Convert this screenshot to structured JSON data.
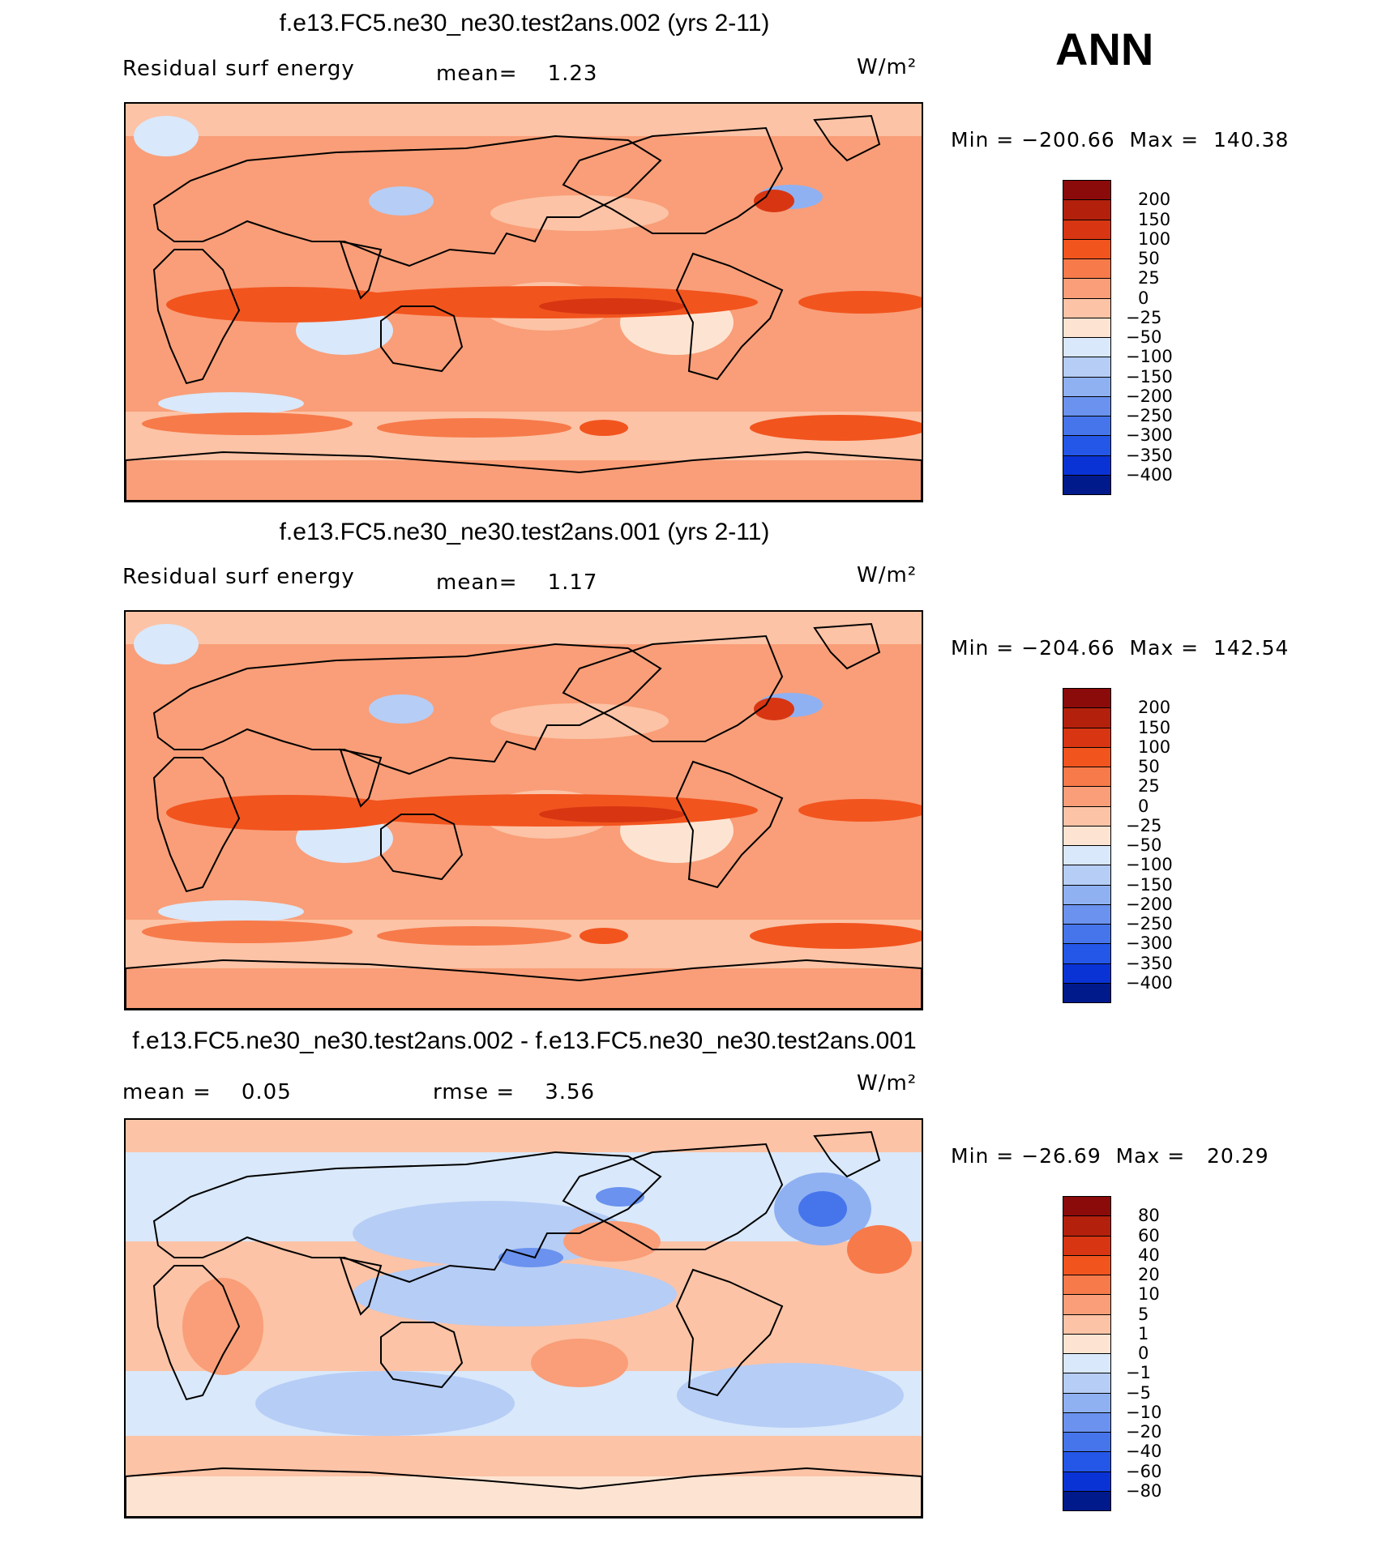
{
  "season": "ANN",
  "units": "W/m²",
  "panels": [
    {
      "id": "top",
      "title": "f.e13.FC5.ne30_ne30.test2ans.002 (yrs 2-11)",
      "left_label": "Residual surf energy",
      "center_label": "mean=    1.23",
      "units": "W/m²",
      "minmax": "Min = −200.66  Max =  140.38",
      "variant": "abs"
    },
    {
      "id": "middle",
      "title": "f.e13.FC5.ne30_ne30.test2ans.001 (yrs 2-11)",
      "left_label": "Residual surf energy",
      "center_label": "mean=    1.17",
      "units": "W/m²",
      "minmax": "Min = −204.66  Max =  142.54",
      "variant": "abs"
    },
    {
      "id": "bottom",
      "title": "f.e13.FC5.ne30_ne30.test2ans.002 - f.e13.FC5.ne30_ne30.test2ans.001",
      "left_label": "mean =    0.05",
      "center_label": "rmse =    3.56",
      "units": "W/m²",
      "minmax": "Min = −26.69  Max =   20.29",
      "variant": "diff"
    }
  ],
  "chart_data": [
    {
      "type": "heatmap",
      "title": "f.e13.FC5.ne30_ne30.test2ans.002 (yrs 2-11)",
      "variable": "Residual surf energy",
      "units": "W/m²",
      "mean": 1.23,
      "min": -200.66,
      "max": 140.38,
      "colorbar_levels": [
        "200",
        "150",
        "100",
        "50",
        "25",
        "0",
        "−25",
        "−50",
        "−100",
        "−150",
        "−200",
        "−250",
        "−300",
        "−350",
        "−400"
      ],
      "colorbar_colors": [
        "#8b0a0a",
        "#b3200c",
        "#d83612",
        "#f2541e",
        "#f77a4a",
        "#f99e78",
        "#fcc3a6",
        "#fde4d2",
        "#d9e8fa",
        "#b6cdf6",
        "#8fb1f2",
        "#6a92ee",
        "#4675eb",
        "#2456e8",
        "#0a33d6",
        "#001a8c"
      ]
    },
    {
      "type": "heatmap",
      "title": "f.e13.FC5.ne30_ne30.test2ans.001 (yrs 2-11)",
      "variable": "Residual surf energy",
      "units": "W/m²",
      "mean": 1.17,
      "min": -204.66,
      "max": 142.54,
      "colorbar_levels": [
        "200",
        "150",
        "100",
        "50",
        "25",
        "0",
        "−25",
        "−50",
        "−100",
        "−150",
        "−200",
        "−250",
        "−300",
        "−350",
        "−400"
      ],
      "colorbar_colors": [
        "#8b0a0a",
        "#b3200c",
        "#d83612",
        "#f2541e",
        "#f77a4a",
        "#f99e78",
        "#fcc3a6",
        "#fde4d2",
        "#d9e8fa",
        "#b6cdf6",
        "#8fb1f2",
        "#6a92ee",
        "#4675eb",
        "#2456e8",
        "#0a33d6",
        "#001a8c"
      ]
    },
    {
      "type": "heatmap",
      "title": "f.e13.FC5.ne30_ne30.test2ans.002 - f.e13.FC5.ne30_ne30.test2ans.001",
      "units": "W/m²",
      "mean": 0.05,
      "rmse": 3.56,
      "min": -26.69,
      "max": 20.29,
      "colorbar_levels": [
        "80",
        "60",
        "40",
        "20",
        "10",
        "5",
        "1",
        "0",
        "−1",
        "−5",
        "−10",
        "−20",
        "−40",
        "−60",
        "−80"
      ],
      "colorbar_colors": [
        "#8b0a0a",
        "#b3200c",
        "#d83612",
        "#f2541e",
        "#f77a4a",
        "#f99e78",
        "#fcc3a6",
        "#fde4d2",
        "#d9e8fa",
        "#b6cdf6",
        "#8fb1f2",
        "#6a92ee",
        "#4675eb",
        "#2456e8",
        "#0a33d6",
        "#001a8c"
      ]
    }
  ]
}
